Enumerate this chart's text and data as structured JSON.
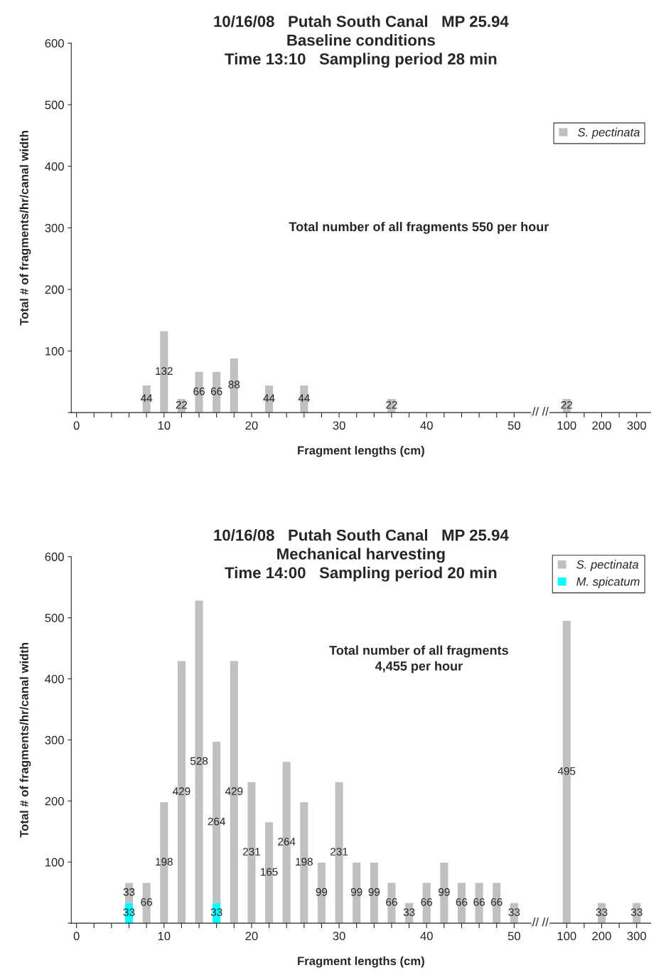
{
  "chart_data": [
    {
      "type": "bar",
      "title": "10/16/08   Putah South Canal   MP 25.94",
      "subtitle": "Baseline conditions\nTime 13:10   Sampling period 28 min",
      "xlabel": "Fragment lengths (cm)",
      "ylabel": "Total # of fragments/hr/canal width",
      "categories": [
        "0",
        null,
        null,
        null,
        null,
        "10",
        null,
        null,
        null,
        null,
        "20",
        null,
        null,
        null,
        null,
        "30",
        null,
        null,
        null,
        null,
        "40",
        null,
        null,
        null,
        null,
        "50",
        null,
        null,
        "100",
        null,
        "200",
        null,
        "300"
      ],
      "series": [
        {
          "name": "S. pectinata",
          "color": "#c0c0c0",
          "values": [
            null,
            null,
            null,
            null,
            44,
            132,
            22,
            66,
            66,
            88,
            null,
            44,
            null,
            44,
            null,
            null,
            null,
            null,
            22,
            null,
            null,
            null,
            null,
            null,
            null,
            null,
            null,
            null,
            22,
            null,
            null,
            null,
            null
          ]
        }
      ],
      "ylim": [
        0,
        600
      ],
      "yticks": [
        {
          "value": 0,
          "label": null
        },
        100,
        200,
        300,
        400,
        500,
        600
      ],
      "annotations": [
        "Total number of all fragments 550 per hour",
        "// //"
      ],
      "data_labels": true,
      "legend": "top right",
      "grid": false
    },
    {
      "type": "bar",
      "title": "10/16/08   Putah South Canal   MP 25.94",
      "subtitle": "Mechanical harvesting\nTime 14:00   Sampling period 20 min",
      "xlabel": "Fragment lengths (cm)",
      "ylabel": "Total # of fragments/hr/canal width",
      "categories": [
        "0",
        null,
        null,
        null,
        null,
        "10",
        null,
        null,
        null,
        null,
        "20",
        null,
        null,
        null,
        null,
        "30",
        null,
        null,
        null,
        null,
        "40",
        null,
        null,
        null,
        null,
        "50",
        null,
        null,
        "100",
        null,
        "200",
        null,
        "300"
      ],
      "stacked": true,
      "series": [
        {
          "name": "M. spicatum",
          "color": "#00ffff",
          "values": [
            null,
            null,
            null,
            33,
            null,
            null,
            null,
            null,
            33,
            null,
            null,
            null,
            null,
            null,
            null,
            null,
            null,
            null,
            null,
            null,
            null,
            null,
            null,
            null,
            null,
            null,
            null,
            null,
            null,
            null,
            null,
            null,
            null
          ]
        },
        {
          "name": "S. pectinata",
          "color": "#c0c0c0",
          "values": [
            null,
            null,
            null,
            33,
            66,
            198,
            429,
            528,
            264,
            429,
            231,
            165,
            264,
            198,
            99,
            231,
            99,
            99,
            66,
            33,
            66,
            99,
            66,
            66,
            66,
            33,
            null,
            null,
            495,
            null,
            33,
            null,
            33
          ]
        }
      ],
      "ylim": [
        0,
        600
      ],
      "yticks": [
        {
          "value": 0,
          "label": null
        },
        100,
        200,
        300,
        400,
        500,
        600
      ],
      "annotations": [
        "Total number of all fragments\n4,455 per hour",
        "// //"
      ],
      "data_labels": true,
      "legend": "top right",
      "grid": false
    }
  ]
}
